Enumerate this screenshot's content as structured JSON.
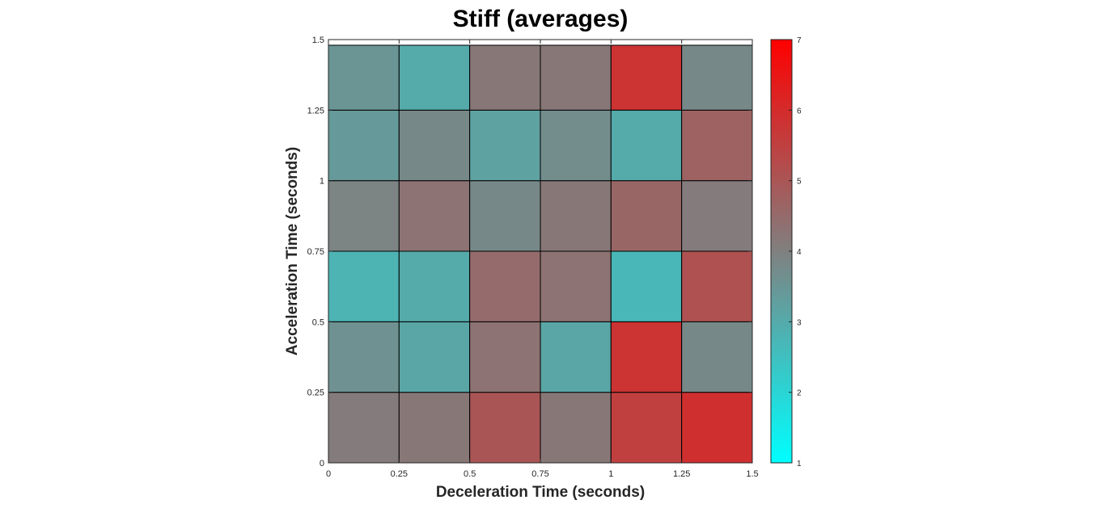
{
  "chart_data": {
    "type": "heatmap",
    "title": "Stiff (averages)",
    "xlabel": "Deceleration Time (seconds)",
    "ylabel": "Acceleration Time (seconds)",
    "x_ticks": [
      "0",
      "0.25",
      "0.5",
      "0.75",
      "1",
      "1.25",
      "1.5"
    ],
    "y_ticks": [
      "0",
      "0.25",
      "0.5",
      "0.75",
      "1",
      "1.25",
      "1.5"
    ],
    "xlim": [
      0,
      1.5
    ],
    "ylim": [
      0,
      1.5
    ],
    "x_edges": [
      0,
      0.25,
      0.5,
      0.75,
      1.0,
      1.25,
      1.5
    ],
    "y_edges": [
      0,
      0.25,
      0.5,
      0.75,
      1.0,
      1.25,
      1.48
    ],
    "colorbar": {
      "ticks": [
        "1",
        "2",
        "3",
        "4",
        "5",
        "6",
        "7"
      ],
      "range": [
        1,
        7
      ],
      "colors": [
        "#00ffff",
        "#808080",
        "#ff0000"
      ]
    },
    "values": [
      [
        4.1,
        4.2,
        5.0,
        4.2,
        5.5,
        5.9
      ],
      [
        3.6,
        3.1,
        4.3,
        3.1,
        5.8,
        3.8
      ],
      [
        2.8,
        3.0,
        4.5,
        4.3,
        2.7,
        5.1
      ],
      [
        3.9,
        4.3,
        3.8,
        4.2,
        4.6,
        4.1
      ],
      [
        3.4,
        3.8,
        3.2,
        3.7,
        3.0,
        4.7
      ],
      [
        3.5,
        3.0,
        4.2,
        4.2,
        5.8,
        3.8
      ]
    ]
  }
}
